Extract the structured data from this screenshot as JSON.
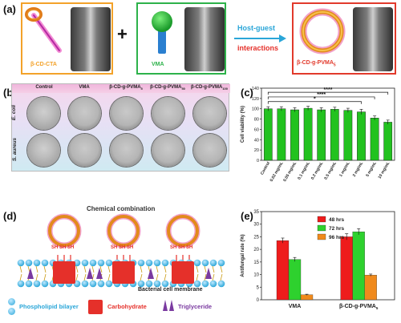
{
  "panel_a": {
    "label": "(a)",
    "compound1": "β-CD-CTA",
    "plus": "+",
    "compound2": "VMA",
    "arrow_top": "Host-guest",
    "arrow_bottom": "interactions",
    "product": "β-CD-g-PVMA",
    "product_sub": "5"
  },
  "panel_b": {
    "label": "(b)",
    "columns": [
      "Control",
      "VMA",
      "β-CD-g-PVMA",
      "β-CD-g-PVMA",
      "β-CD-g-PVMA"
    ],
    "column_subs": [
      "",
      "",
      "5",
      "50",
      "100"
    ],
    "rows": [
      "E. coli",
      "S. aureus"
    ]
  },
  "panel_c": {
    "label": "(c)",
    "chart_data": {
      "type": "bar",
      "categories": [
        "Control",
        "0.02 mg/mL",
        "0.05 mg/mL",
        "0.1 mg/mL",
        "0.2 mg/mL",
        "0.5 mg/mL",
        "1 mg/mL",
        "2 mg/mL",
        "5 mg/mL",
        "10 mg/mL"
      ],
      "values": [
        100,
        100,
        98,
        101,
        98,
        99,
        97,
        94,
        82,
        74
      ],
      "errors": [
        4,
        4,
        4,
        4,
        4,
        4,
        4,
        5,
        4,
        4
      ],
      "ylabel": "Cell viability (%)",
      "ylim": [
        0,
        140
      ],
      "yticks": [
        0,
        20,
        40,
        60,
        80,
        100,
        120,
        140
      ],
      "significance": [
        "****",
        "****",
        "*"
      ],
      "bar_color": "#22c21f"
    }
  },
  "panel_d": {
    "label": "(d)",
    "title": "Chemical combination",
    "sh_label": "SH SH SH",
    "membrane_label": "Bacterial cell membrane",
    "legend": [
      {
        "label": "Phospholipid bilayer",
        "color": "#2aa6d8"
      },
      {
        "label": "Carbohydrate",
        "color": "#e5302a"
      },
      {
        "label": "Triglyceride",
        "color": "#7a3aa0"
      }
    ]
  },
  "panel_e": {
    "label": "(e)",
    "chart_data": {
      "type": "bar",
      "categories": [
        "VMA",
        "β-CD-g-PVMA5"
      ],
      "category_labels": [
        "VMA",
        "β-CD-g-PVMA"
      ],
      "category_subs": [
        "",
        "5"
      ],
      "series": [
        {
          "name": "48 hrs",
          "values": [
            23.5,
            25.0
          ],
          "errors": [
            1.0,
            1.2
          ],
          "color": "#ee1c1c"
        },
        {
          "name": "72 hrs",
          "values": [
            16.0,
            27.0
          ],
          "errors": [
            0.8,
            1.2
          ],
          "color": "#2ed12e"
        },
        {
          "name": "96 hrs",
          "values": [
            2.0,
            9.8
          ],
          "errors": [
            0.2,
            0.4
          ],
          "color": "#f08a1c"
        }
      ],
      "ylabel": "Antifungal rate (%)",
      "ylim": [
        0,
        35
      ],
      "yticks": [
        0,
        5,
        10,
        15,
        20,
        25,
        30,
        35
      ]
    }
  }
}
